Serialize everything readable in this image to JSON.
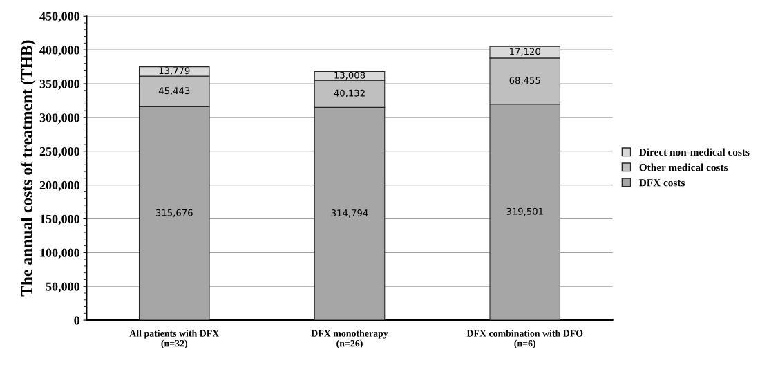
{
  "chart_data": {
    "type": "bar",
    "stacked": true,
    "ylabel": "The annual costs of treatment (THB)",
    "categories": [
      "All patients with DFX\n(n=32)",
      "DFX monotherapy\n(n=26)",
      "DFX combination with DFO\n(n=6)"
    ],
    "series": [
      {
        "name": "DFX costs",
        "color": "#a6a6a6",
        "values": [
          315676,
          314794,
          319501
        ],
        "value_labels": [
          "315,676",
          "314,794",
          "319,501"
        ]
      },
      {
        "name": "Other medical costs",
        "color": "#bfbfbf",
        "values": [
          45443,
          40132,
          68455
        ],
        "value_labels": [
          "45,443",
          "40,132",
          "68,455"
        ]
      },
      {
        "name": "Direct non-medical costs",
        "color": "#d9d9d9",
        "values": [
          13779,
          13008,
          17120
        ],
        "value_labels": [
          "13,779",
          "13,008",
          "17,120"
        ]
      }
    ],
    "ylim": [
      0,
      450000
    ],
    "yticks": [
      {
        "value": 0,
        "label": "0"
      },
      {
        "value": 50000,
        "label": "50,000"
      },
      {
        "value": 100000,
        "label": "100,000"
      },
      {
        "value": 150000,
        "label": "150,000"
      },
      {
        "value": 200000,
        "label": "200,000"
      },
      {
        "value": 250000,
        "label": "250,000"
      },
      {
        "value": 300000,
        "label": "300,000"
      },
      {
        "value": 350000,
        "label": "350,000"
      },
      {
        "value": 400000,
        "label": "400,000"
      },
      {
        "value": 450000,
        "label": "450,000"
      }
    ],
    "grid": "y",
    "legend": "right"
  }
}
